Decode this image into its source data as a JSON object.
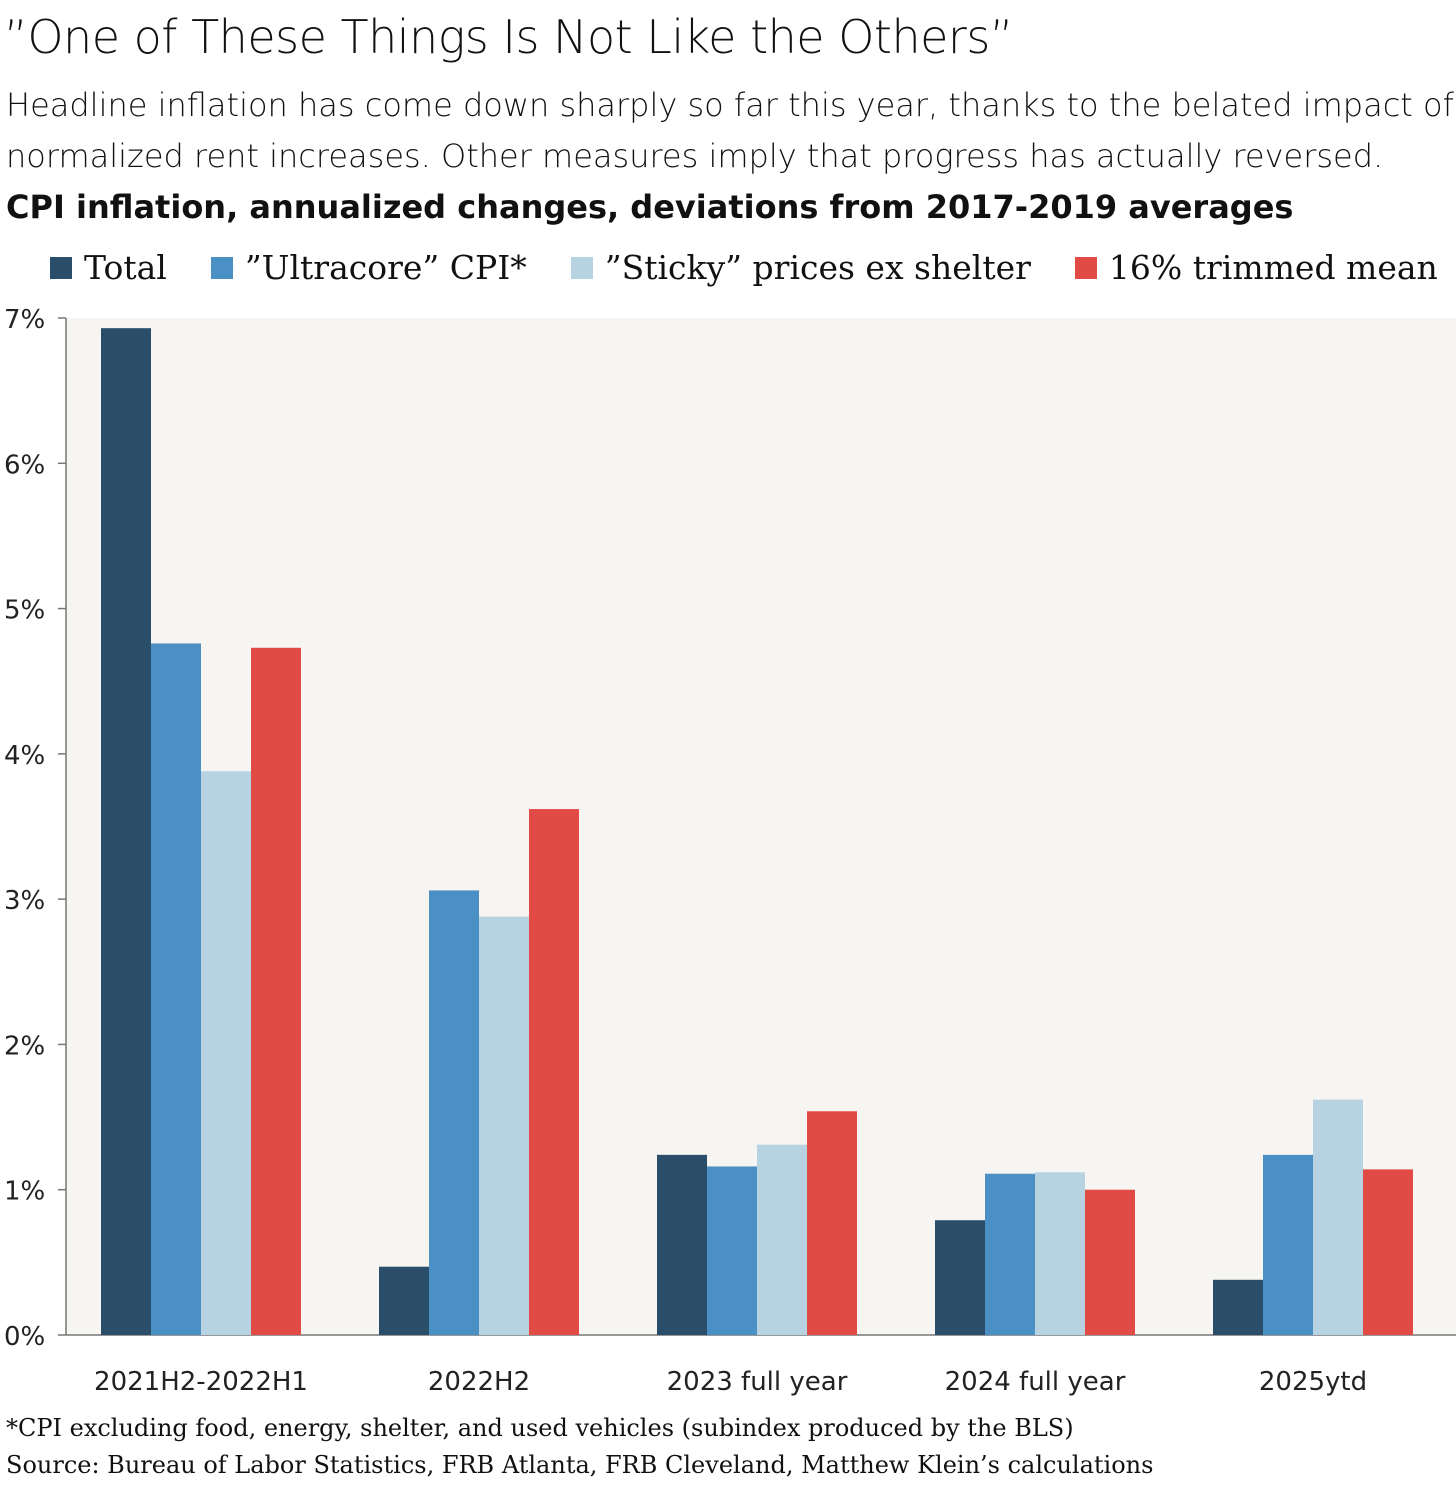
{
  "header": {
    "title": "”One of These Things Is Not Like the Others”",
    "subtitle": "Headline inflation has come down sharply so far this year, thanks to the belated impact of normalized rent increases. Other measures imply that progress has actually reversed."
  },
  "footer": {
    "note": "*CPI excluding food, energy, shelter, and used vehicles (subindex produced by the BLS)",
    "source": "Source: Bureau of Labor Statistics, FRB Atlanta, FRB Cleveland, Matthew Klein’s calculations"
  },
  "chart_data": {
    "type": "bar",
    "title": "CPI inflation, annualized changes, deviations from 2017-2019 averages",
    "xlabel": "",
    "ylabel": "",
    "ylim": [
      0,
      7
    ],
    "yticks": [
      0,
      1,
      2,
      3,
      4,
      5,
      6,
      7
    ],
    "ytick_labels": [
      "0%",
      "1%",
      "2%",
      "3%",
      "4%",
      "5%",
      "6%",
      "7%"
    ],
    "legend_position": "top",
    "categories": [
      "2021H2-2022H1",
      "2022H2",
      "2023 full year",
      "2024 full year",
      "2025ytd"
    ],
    "series": [
      {
        "name": "Total",
        "color": "#2a4d69",
        "values": [
          6.93,
          0.47,
          1.24,
          0.79,
          0.38
        ]
      },
      {
        "name": "”Ultracore” CPI*",
        "color": "#4a90c4",
        "values": [
          4.76,
          3.06,
          1.16,
          1.11,
          1.24
        ]
      },
      {
        "name": "”Sticky” prices ex shelter",
        "color": "#b7d2e0",
        "values": [
          3.88,
          2.88,
          1.31,
          1.12,
          1.62
        ]
      },
      {
        "name": "16% trimmed mean",
        "color": "#e24a46",
        "values": [
          4.73,
          3.62,
          1.54,
          1.0,
          1.14
        ]
      }
    ]
  }
}
